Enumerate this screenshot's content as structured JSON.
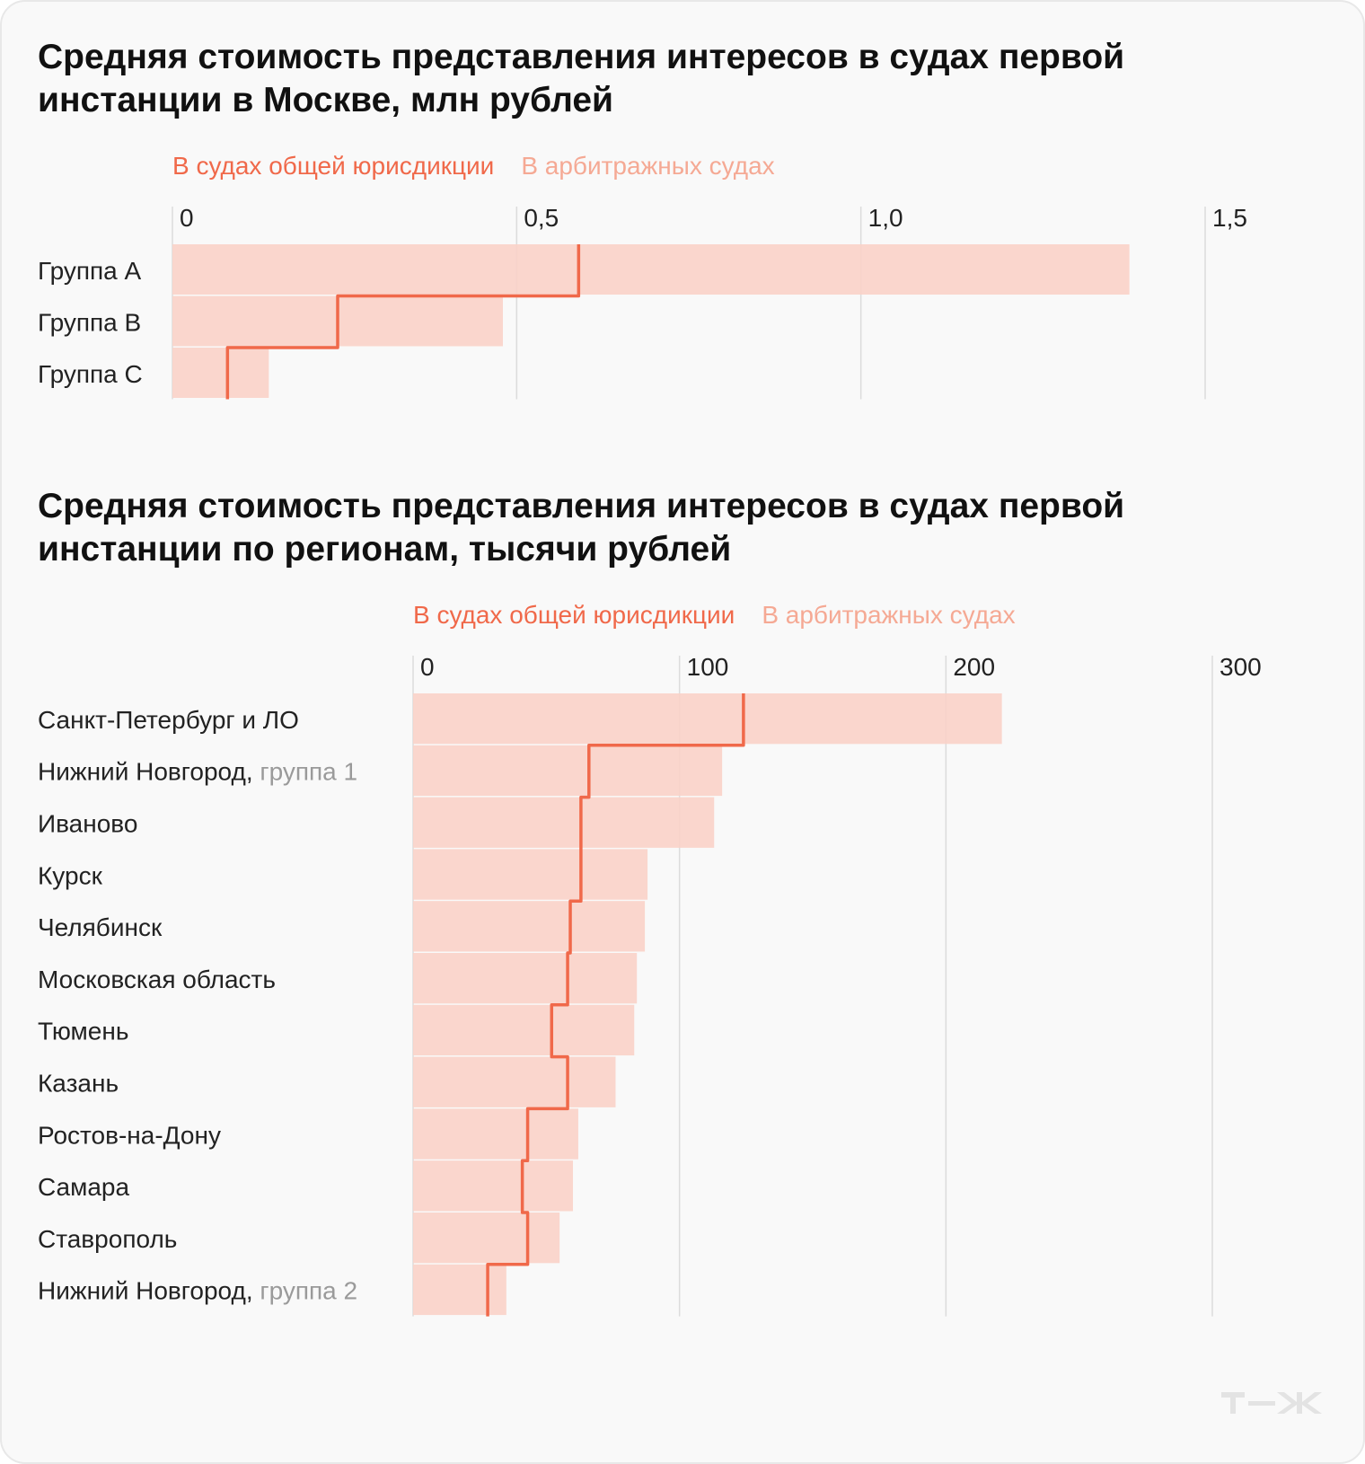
{
  "chart_data": [
    {
      "type": "bar",
      "title": "Средняя стоимость представления интересов в судах первой инстанции в Москве, млн рублей",
      "categories": [
        "Группа A",
        "Группа B",
        "Группа C"
      ],
      "category_suffixes": [
        "",
        "",
        ""
      ],
      "series": [
        {
          "name": "В судах общей юрисдикции",
          "values": [
            0.59,
            0.24,
            0.08
          ],
          "style": "step-line",
          "color": "#f0694a"
        },
        {
          "name": "В арбитражных судах",
          "values": [
            1.39,
            0.48,
            0.14
          ],
          "style": "bar",
          "color": "#f9d1c8"
        }
      ],
      "xlim": [
        0,
        1.5
      ],
      "xticks": [
        0,
        0.5,
        1.0,
        1.5
      ],
      "xtick_labels": [
        "0",
        "0,5",
        "1,0",
        "1,5"
      ],
      "grid": true,
      "legend_position": "top-left"
    },
    {
      "type": "bar",
      "title": "Средняя стоимость представления интересов в судах первой инстанции по регионам, тысячи рублей",
      "categories": [
        "Санкт-Петербург и ЛО",
        "Нижний Новгород,",
        "Иваново",
        "Курск",
        "Челябинск",
        "Московская область",
        "Тюмень",
        "Казань",
        "Ростов-на-Дону",
        "Самара",
        "Ставрополь",
        "Нижний Новгород,"
      ],
      "category_suffixes": [
        "",
        "группа 1",
        "",
        "",
        "",
        "",
        "",
        "",
        "",
        "",
        "",
        "группа 2"
      ],
      "series": [
        {
          "name": "В судах общей юрисдикции",
          "values": [
            124,
            66,
            63,
            63,
            59,
            58,
            52,
            58,
            43,
            41,
            43,
            28
          ],
          "style": "step-line",
          "color": "#f0694a"
        },
        {
          "name": "В арбитражных судах",
          "values": [
            221,
            116,
            113,
            88,
            87,
            84,
            83,
            76,
            62,
            60,
            55,
            35
          ],
          "style": "bar",
          "color": "#f9d1c8"
        }
      ],
      "xlim": [
        0,
        300
      ],
      "xticks": [
        0,
        100,
        200,
        300
      ],
      "xtick_labels": [
        "0",
        "100",
        "200",
        "300"
      ],
      "grid": true,
      "legend_position": "top-left"
    }
  ],
  "logo": {
    "text": "т—ж",
    "color": "#e3e3e3"
  }
}
